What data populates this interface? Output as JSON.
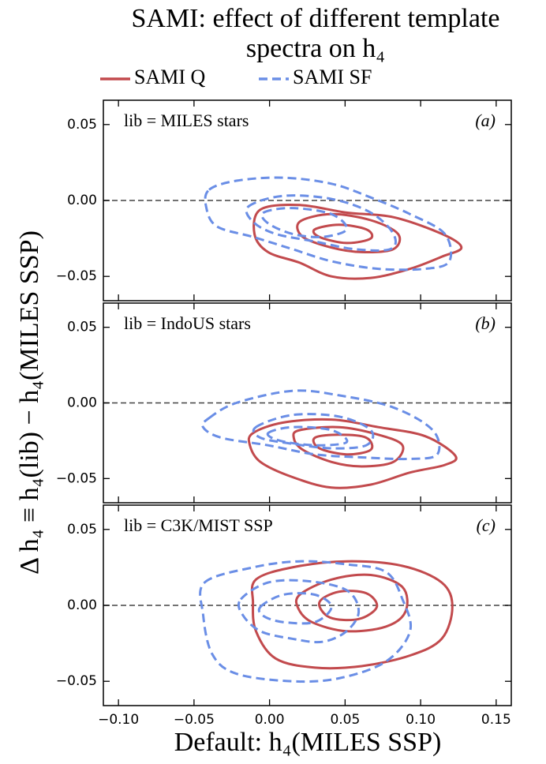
{
  "chart_data": [
    {
      "type": "contour",
      "title": [
        "SAMI: effect of different template",
        "spectra on h₄"
      ],
      "ylabel": "Δ h₄ ≡ h₄(lib) − h₄(MILES SSP)",
      "annotation": "lib = MILES stars",
      "panel_label": "(a)",
      "ylim": [
        -0.066,
        0.066
      ],
      "yticks": [
        {
          "value": -0.05,
          "label": "−0.05"
        },
        {
          "value": 0,
          "label": "0.00"
        },
        0.05
      ],
      "hline": 0,
      "series": [
        {
          "name": "SAMI Q",
          "color": "#c24a4d",
          "linestyle": "solid",
          "contours": [
            {
              "x": [
                -0.006,
                0.02,
                0.051,
                0.082,
                0.114,
                0.127,
                0.114,
                0.093,
                0.067,
                0.041,
                0.02,
                -0.001,
                -0.01
              ],
              "y": [
                -0.006,
                -0.003,
                -0.008,
                -0.011,
                -0.022,
                -0.031,
                -0.037,
                -0.045,
                -0.051,
                -0.05,
                -0.041,
                -0.034,
                -0.022
              ]
            },
            {
              "x": [
                0.02,
                0.041,
                0.067,
                0.085,
                0.082,
                0.061,
                0.041,
                0.022
              ],
              "y": [
                -0.014,
                -0.009,
                -0.013,
                -0.022,
                -0.032,
                -0.034,
                -0.031,
                -0.024
              ]
            },
            {
              "x": [
                0.03,
                0.046,
                0.064,
                0.067,
                0.051,
                0.033
              ],
              "y": [
                -0.019,
                -0.016,
                -0.019,
                -0.025,
                -0.028,
                -0.024
              ]
            }
          ]
        },
        {
          "name": "SAMI SF",
          "color": "#6a8ee6",
          "linestyle": "dashed",
          "contours": [
            {
              "x": [
                -0.04,
                -0.022,
                0.009,
                0.041,
                0.067,
                0.093,
                0.116,
                0.119,
                0.103,
                0.072,
                0.041,
                0.015,
                -0.011,
                -0.035,
                -0.042
              ],
              "y": [
                0.007,
                0.013,
                0.015,
                0.011,
                0.002,
                -0.009,
                -0.022,
                -0.04,
                -0.045,
                -0.045,
                -0.04,
                -0.032,
                -0.024,
                -0.017,
                -0.004
              ]
            },
            {
              "x": [
                -0.014,
                0.009,
                0.041,
                0.067,
                0.082,
                0.08,
                0.056,
                0.03,
                0.004,
                -0.011
              ],
              "y": [
                -0.004,
                0.003,
                0.001,
                -0.008,
                -0.022,
                -0.032,
                -0.032,
                -0.027,
                -0.022,
                -0.014
              ]
            },
            {
              "x": [
                -0.004,
                0.015,
                0.041,
                0.051,
                0.035,
                0.015,
                -0.001
              ],
              "y": [
                -0.008,
                -0.005,
                -0.009,
                -0.019,
                -0.024,
                -0.022,
                -0.015
              ]
            }
          ]
        }
      ]
    },
    {
      "type": "contour",
      "annotation": "lib = IndoUS stars",
      "panel_label": "(b)",
      "ylim": [
        -0.066,
        0.066
      ],
      "yticks": [
        {
          "value": -0.05,
          "label": "−0.05"
        },
        {
          "value": 0,
          "label": "0.00"
        },
        0.05
      ],
      "hline": 0,
      "series": [
        {
          "color": "#c24a4d",
          "linestyle": "solid",
          "contours": [
            {
              "x": [
                -0.011,
                0.009,
                0.041,
                0.072,
                0.103,
                0.123,
                0.116,
                0.093,
                0.067,
                0.041,
                0.015,
                -0.006,
                -0.013
              ],
              "y": [
                -0.02,
                -0.013,
                -0.011,
                -0.016,
                -0.022,
                -0.035,
                -0.041,
                -0.046,
                -0.054,
                -0.056,
                -0.049,
                -0.039,
                -0.028
              ]
            },
            {
              "x": [
                0.02,
                0.046,
                0.072,
                0.088,
                0.082,
                0.061,
                0.041,
                0.022,
                0.016
              ],
              "y": [
                -0.018,
                -0.016,
                -0.021,
                -0.028,
                -0.039,
                -0.042,
                -0.039,
                -0.031,
                -0.023
              ]
            },
            {
              "x": [
                0.03,
                0.046,
                0.064,
                0.067,
                0.051,
                0.033
              ],
              "y": [
                -0.023,
                -0.021,
                -0.023,
                -0.031,
                -0.034,
                -0.03
              ]
            }
          ]
        },
        {
          "color": "#6a8ee6",
          "linestyle": "dashed",
          "contours": [
            {
              "x": [
                -0.04,
                -0.022,
                0.015,
                0.046,
                0.082,
                0.108,
                0.111,
                0.093,
                0.061,
                0.03,
                -0.001,
                -0.032,
                -0.044
              ],
              "y": [
                -0.01,
                0.0,
                0.008,
                0.005,
                -0.003,
                -0.018,
                -0.034,
                -0.037,
                -0.036,
                -0.034,
                -0.028,
                -0.023,
                -0.016
              ]
            },
            {
              "x": [
                -0.009,
                0.015,
                0.046,
                0.067,
                0.064,
                0.041,
                0.015,
                -0.006
              ],
              "y": [
                -0.016,
                -0.008,
                -0.009,
                -0.018,
                -0.028,
                -0.03,
                -0.027,
                -0.023
              ]
            },
            {
              "x": [
                -0.001,
                0.015,
                0.041,
                0.051,
                0.03,
                0.007
              ],
              "y": [
                -0.02,
                -0.016,
                -0.018,
                -0.026,
                -0.028,
                -0.025
              ]
            }
          ]
        }
      ]
    },
    {
      "type": "contour",
      "annotation": "lib = C3K/MIST SSP",
      "panel_label": "(c)",
      "xlabel": "Default: h₄(MILES SSP)",
      "xlim": [
        -0.11,
        0.16
      ],
      "xticks": [
        {
          "value": -0.1,
          "label": "−0.10"
        },
        {
          "value": -0.05,
          "label": "−0.05"
        },
        {
          "value": 0,
          "label": "0.00"
        },
        0.05,
        {
          "value": 0.1,
          "label": "0.10"
        },
        0.15
      ],
      "ylim": [
        -0.066,
        0.066
      ],
      "yticks": [
        {
          "value": -0.05,
          "label": "−0.05"
        },
        {
          "value": 0,
          "label": "0.00"
        },
        0.05
      ],
      "hline": 0,
      "series": [
        {
          "color": "#c24a4d",
          "linestyle": "solid",
          "contours": [
            {
              "x": [
                -0.009,
                0.015,
                0.051,
                0.088,
                0.114,
                0.121,
                0.114,
                0.093,
                0.061,
                0.03,
                0.004,
                -0.009,
                -0.011
              ],
              "y": [
                0.017,
                0.025,
                0.029,
                0.026,
                0.015,
                -0.001,
                -0.022,
                -0.033,
                -0.04,
                -0.041,
                -0.035,
                -0.017,
                0.002
              ]
            },
            {
              "x": [
                0.02,
                0.041,
                0.067,
                0.088,
                0.09,
                0.077,
                0.051,
                0.028,
                0.019
              ],
              "y": [
                0.007,
                0.017,
                0.02,
                0.012,
                -0.004,
                -0.014,
                -0.017,
                -0.011,
                -0.002
              ]
            },
            {
              "x": [
                0.033,
                0.046,
                0.064,
                0.071,
                0.059,
                0.04
              ],
              "y": [
                0.002,
                0.009,
                0.008,
                -0.001,
                -0.009,
                -0.008
              ]
            }
          ]
        },
        {
          "color": "#6a8ee6",
          "linestyle": "dashed",
          "contours": [
            {
              "x": [
                -0.043,
                -0.011,
                0.02,
                0.051,
                0.077,
                0.088,
                0.093,
                0.077,
                0.046,
                0.015,
                -0.022,
                -0.038,
                -0.044
              ],
              "y": [
                0.015,
                0.025,
                0.029,
                0.027,
                0.022,
                0.004,
                -0.017,
                -0.037,
                -0.048,
                -0.05,
                -0.045,
                -0.032,
                -0.006
              ]
            },
            {
              "x": [
                -0.019,
                -0.001,
                0.025,
                0.051,
                0.059,
                0.051,
                0.035,
                0.015,
                -0.006,
                -0.018
              ],
              "y": [
                0.004,
                0.015,
                0.016,
                0.01,
                -0.004,
                -0.017,
                -0.024,
                -0.022,
                -0.017,
                -0.006
              ]
            },
            {
              "x": [
                -0.006,
                0.009,
                0.03,
                0.041,
                0.03,
                0.009,
                -0.004
              ],
              "y": [
                -0.001,
                0.007,
                0.007,
                -0.001,
                -0.011,
                -0.011,
                -0.007
              ]
            }
          ]
        }
      ]
    }
  ]
}
